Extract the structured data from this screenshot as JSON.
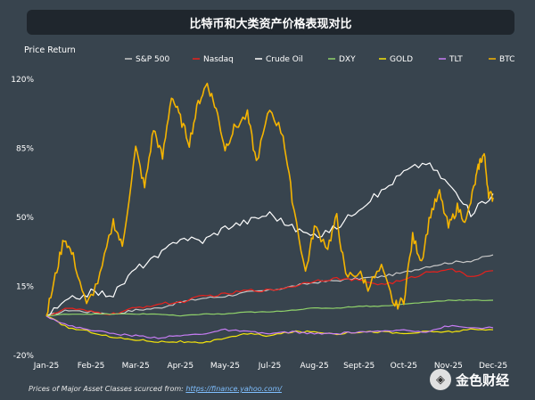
{
  "chart_data": {
    "type": "line",
    "title": "比特币和大类资产价格表现对比",
    "ylabel": "Price Return",
    "xlabel": "",
    "ylim": [
      -20,
      125
    ],
    "y_ticks": [
      "120%",
      "85%",
      "50%",
      "15%",
      "-20%"
    ],
    "y_tick_values": [
      120,
      85,
      50,
      15,
      -20
    ],
    "x_ticks": [
      "Jan-25",
      "Feb-25",
      "Mar-25",
      "Apr-25",
      "May-25",
      "Jul-25",
      "Aug-25",
      "Sept-25",
      "Oct-25",
      "Nov-25",
      "Dec-25"
    ],
    "legend_position": "top",
    "grid": false,
    "series": [
      {
        "name": "S&P 500",
        "color": "#c8c8c8",
        "points": [
          [
            0,
            0
          ],
          [
            5,
            3
          ],
          [
            10,
            2
          ],
          [
            15,
            1
          ],
          [
            20,
            3
          ],
          [
            25,
            4
          ],
          [
            30,
            7
          ],
          [
            35,
            9
          ],
          [
            40,
            10
          ],
          [
            45,
            12
          ],
          [
            50,
            13
          ],
          [
            55,
            15
          ],
          [
            60,
            17
          ],
          [
            65,
            18
          ],
          [
            70,
            19
          ],
          [
            75,
            20
          ],
          [
            80,
            22
          ],
          [
            85,
            25
          ],
          [
            90,
            27
          ],
          [
            95,
            28
          ],
          [
            100,
            31
          ]
        ]
      },
      {
        "name": "Nasdaq",
        "color": "#e8211c",
        "points": [
          [
            0,
            0
          ],
          [
            5,
            4
          ],
          [
            10,
            2
          ],
          [
            15,
            1
          ],
          [
            20,
            4
          ],
          [
            25,
            6
          ],
          [
            30,
            7
          ],
          [
            35,
            10
          ],
          [
            40,
            11
          ],
          [
            45,
            13
          ],
          [
            50,
            13
          ],
          [
            55,
            15
          ],
          [
            60,
            18
          ],
          [
            65,
            19
          ],
          [
            70,
            18
          ],
          [
            75,
            16
          ],
          [
            80,
            18
          ],
          [
            85,
            22
          ],
          [
            90,
            24
          ],
          [
            95,
            20
          ],
          [
            100,
            23
          ]
        ]
      },
      {
        "name": "Crude Oil",
        "color": "#ffffff",
        "points": [
          [
            0,
            0
          ],
          [
            5,
            8
          ],
          [
            10,
            12
          ],
          [
            15,
            11
          ],
          [
            20,
            24
          ],
          [
            25,
            30
          ],
          [
            30,
            40
          ],
          [
            35,
            38
          ],
          [
            40,
            45
          ],
          [
            45,
            48
          ],
          [
            50,
            52
          ],
          [
            55,
            45
          ],
          [
            60,
            40
          ],
          [
            65,
            45
          ],
          [
            70,
            55
          ],
          [
            75,
            63
          ],
          [
            80,
            73
          ],
          [
            85,
            78
          ],
          [
            90,
            67
          ],
          [
            95,
            52
          ],
          [
            100,
            62
          ]
        ]
      },
      {
        "name": "DXY",
        "color": "#8fd16a",
        "points": [
          [
            0,
            0
          ],
          [
            5,
            1
          ],
          [
            10,
            1
          ],
          [
            15,
            1
          ],
          [
            20,
            1
          ],
          [
            25,
            1
          ],
          [
            30,
            0
          ],
          [
            35,
            1
          ],
          [
            40,
            1
          ],
          [
            45,
            2
          ],
          [
            50,
            2
          ],
          [
            55,
            3
          ],
          [
            60,
            4
          ],
          [
            65,
            4
          ],
          [
            70,
            5
          ],
          [
            75,
            5
          ],
          [
            80,
            6
          ],
          [
            85,
            7
          ],
          [
            90,
            8
          ],
          [
            95,
            8
          ],
          [
            100,
            8
          ]
        ]
      },
      {
        "name": "GOLD",
        "color": "#f5e50a",
        "points": [
          [
            0,
            0
          ],
          [
            5,
            -6
          ],
          [
            10,
            -8
          ],
          [
            15,
            -11
          ],
          [
            20,
            -12
          ],
          [
            25,
            -13
          ],
          [
            30,
            -13
          ],
          [
            35,
            -14
          ],
          [
            40,
            -11
          ],
          [
            45,
            -9
          ],
          [
            50,
            -10
          ],
          [
            55,
            -8
          ],
          [
            60,
            -8
          ],
          [
            65,
            -9
          ],
          [
            70,
            -8
          ],
          [
            75,
            -8
          ],
          [
            80,
            -9
          ],
          [
            85,
            -8
          ],
          [
            90,
            -8
          ],
          [
            95,
            -7
          ],
          [
            100,
            -7
          ]
        ]
      },
      {
        "name": "TLT",
        "color": "#c77df5",
        "points": [
          [
            0,
            0
          ],
          [
            5,
            -5
          ],
          [
            10,
            -7
          ],
          [
            15,
            -9
          ],
          [
            20,
            -10
          ],
          [
            25,
            -11
          ],
          [
            30,
            -10
          ],
          [
            35,
            -9
          ],
          [
            40,
            -7
          ],
          [
            45,
            -8
          ],
          [
            50,
            -9
          ],
          [
            55,
            -8
          ],
          [
            60,
            -9
          ],
          [
            65,
            -9
          ],
          [
            70,
            -8
          ],
          [
            75,
            -8
          ],
          [
            80,
            -7
          ],
          [
            85,
            -8
          ],
          [
            90,
            -5
          ],
          [
            95,
            -6
          ],
          [
            100,
            -6
          ]
        ]
      },
      {
        "name": "BTC",
        "color": "#f5b400",
        "points": [
          [
            0,
            0
          ],
          [
            2,
            20
          ],
          [
            4,
            40
          ],
          [
            6,
            30
          ],
          [
            9,
            5
          ],
          [
            12,
            20
          ],
          [
            15,
            48
          ],
          [
            17,
            35
          ],
          [
            20,
            85
          ],
          [
            22,
            65
          ],
          [
            24,
            95
          ],
          [
            26,
            80
          ],
          [
            28,
            112
          ],
          [
            30,
            100
          ],
          [
            32,
            88
          ],
          [
            34,
            108
          ],
          [
            36,
            118
          ],
          [
            38,
            105
          ],
          [
            40,
            85
          ],
          [
            42,
            95
          ],
          [
            45,
            102
          ],
          [
            47,
            78
          ],
          [
            50,
            105
          ],
          [
            53,
            92
          ],
          [
            55,
            60
          ],
          [
            58,
            22
          ],
          [
            60,
            45
          ],
          [
            63,
            35
          ],
          [
            65,
            50
          ],
          [
            67,
            20
          ],
          [
            70,
            22
          ],
          [
            72,
            15
          ],
          [
            75,
            24
          ],
          [
            78,
            5
          ],
          [
            80,
            8
          ],
          [
            82,
            40
          ],
          [
            84,
            28
          ],
          [
            86,
            52
          ],
          [
            88,
            62
          ],
          [
            90,
            45
          ],
          [
            92,
            55
          ],
          [
            94,
            48
          ],
          [
            96,
            68
          ],
          [
            97,
            78
          ],
          [
            98,
            82
          ],
          [
            99,
            62
          ],
          [
            100,
            60
          ]
        ]
      }
    ]
  },
  "footer": {
    "text": "Prices of Major Asset Classes scurced from: ",
    "link": "https://finance.yahoo.com/"
  },
  "logo": {
    "icon": "gold-coin-icon",
    "name": "金色财经"
  }
}
